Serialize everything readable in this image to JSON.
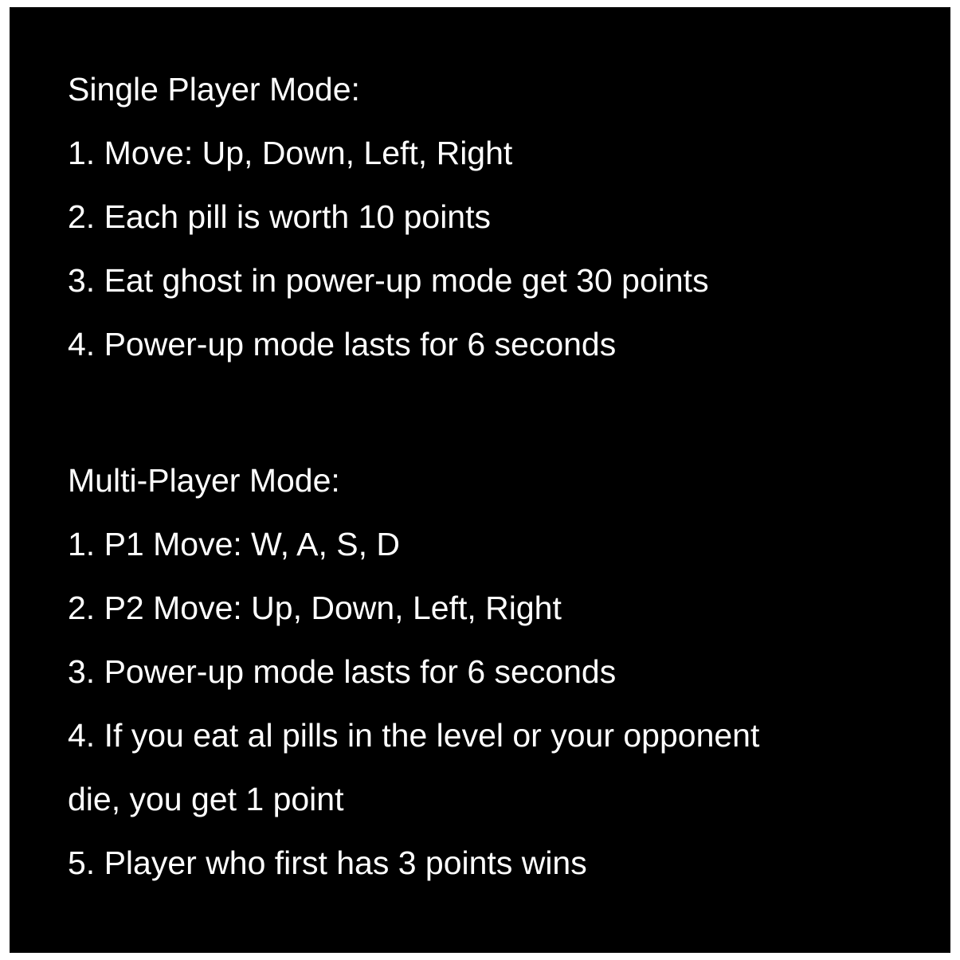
{
  "colors": {
    "background": "#000000",
    "text": "#ffffff",
    "page": "#ffffff"
  },
  "single_player": {
    "heading": "Single Player Mode:",
    "items": [
      "1. Move: Up, Down, Left, Right",
      "2. Each pill is worth 10 points",
      "3. Eat ghost in power-up mode get 30 points",
      "4. Power-up mode lasts for 6 seconds"
    ]
  },
  "multi_player": {
    "heading": "Multi-Player Mode:",
    "items": [
      "1. P1 Move: W, A, S, D",
      "2. P2 Move: Up, Down, Left, Right",
      "3. Power-up mode lasts for 6 seconds",
      "4. If you eat al pills in the level or your opponent",
      "die, you get 1 point",
      "5. Player who first has 3 points wins"
    ]
  }
}
